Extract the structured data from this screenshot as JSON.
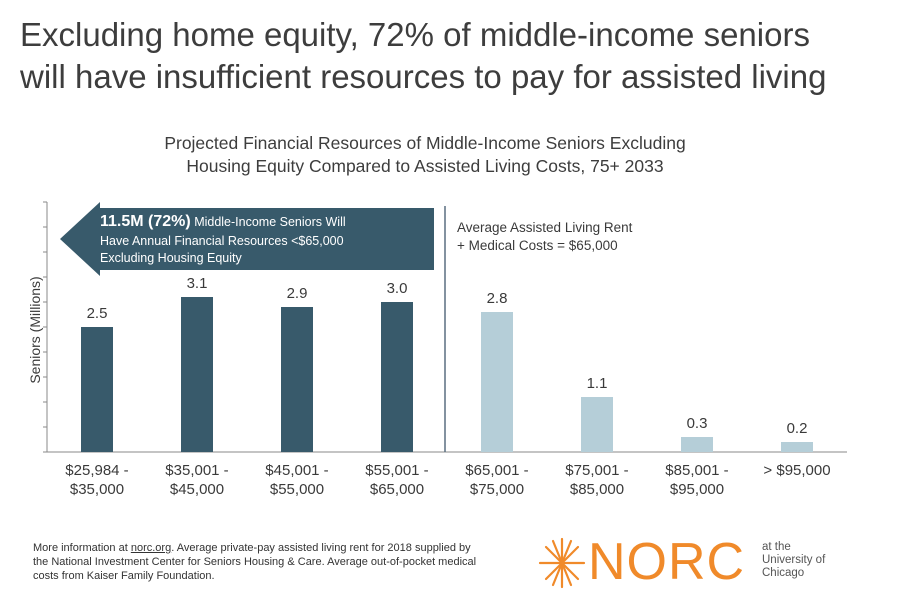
{
  "headline": {
    "line1": "Excluding home equity, 72% of middle-income seniors",
    "line2": "will have insufficient resources to pay for assisted living"
  },
  "chart_data": {
    "type": "bar",
    "title_line1": "Projected Financial Resources of Middle-Income Seniors Excluding",
    "title_line2": "Housing Equity Compared to Assisted Living Costs, 75+ 2033",
    "ylabel": "Seniors (Millions)",
    "ylim": [
      0,
      5
    ],
    "categories": [
      [
        "$25,984 -",
        "$35,000"
      ],
      [
        "$35,001 -",
        "$45,000"
      ],
      [
        "$45,001 -",
        "$55,000"
      ],
      [
        "$55,001 -",
        "$65,000"
      ],
      [
        "$65,001 -",
        "$75,000"
      ],
      [
        "$75,001 -",
        "$85,000"
      ],
      [
        "$85,001 -",
        "$95,000"
      ],
      [
        "> $95,000"
      ]
    ],
    "values": [
      2.5,
      3.1,
      2.9,
      3.0,
      2.8,
      1.1,
      0.3,
      0.2
    ],
    "value_labels": [
      "2.5",
      "3.1",
      "2.9",
      "3.0",
      "2.8",
      "1.1",
      "0.3",
      "0.2"
    ],
    "colors": {
      "below": "#385a6b",
      "above": "#b5ced8",
      "divider": "#5a6f80"
    },
    "divider_after_index": 3,
    "callout": {
      "bold": "11.5M (72%)",
      "line1_rest": " Middle-Income Seniors Will",
      "line2": "Have Annual Financial Resources <$65,000",
      "line3": "Excluding Housing Equity",
      "color": "#385a6b"
    },
    "annotation": {
      "line1": "Average Assisted Living Rent",
      "line2": "+ Medical Costs = $65,000"
    }
  },
  "footer": {
    "prefix": "More information at ",
    "link": "norc.org",
    "rest1": ". Average private-pay assisted living rent for 2018 supplied by",
    "line2": "the National Investment Center for Seniors Housing & Care. Average out-of-pocket medical",
    "line3": "costs from Kaiser Family Foundation."
  },
  "logo": {
    "word": "NORC",
    "sub1": "at the",
    "sub2": "University of",
    "sub3": "Chicago",
    "color": "#f08a2a"
  }
}
